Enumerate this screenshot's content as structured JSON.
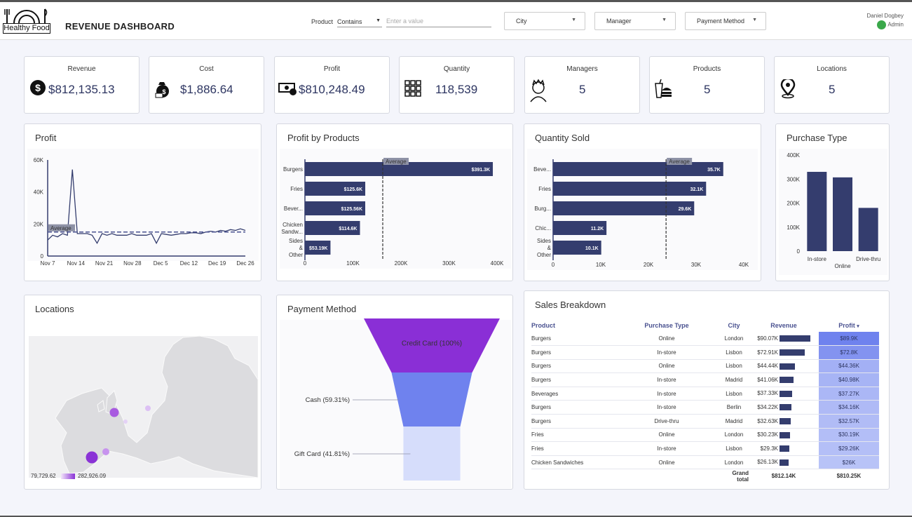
{
  "header": {
    "logo_text": "Healthy Food",
    "title": "REVENUE DASHBOARD",
    "product_filter": {
      "label": "Product",
      "operator": "Contains",
      "placeholder": "Enter a value"
    },
    "dropdowns": [
      "City",
      "Manager",
      "Payment Method"
    ],
    "user": {
      "name": "Daniel Dogbey",
      "role": "Admin"
    }
  },
  "kpis": [
    {
      "label": "Revenue",
      "value": "$812,135.13",
      "icon": "dollar-coin-icon"
    },
    {
      "label": "Cost",
      "value": "$1,886.64",
      "icon": "money-bag-icon"
    },
    {
      "label": "Profit",
      "value": "$810,248.49",
      "icon": "cash-icon"
    },
    {
      "label": "Quantity",
      "value": "118,539",
      "icon": "grid-icon"
    },
    {
      "label": "Managers",
      "value": "5",
      "icon": "manager-icon"
    },
    {
      "label": "Products",
      "value": "5",
      "icon": "food-icon"
    },
    {
      "label": "Locations",
      "value": "5",
      "icon": "location-pin-icon"
    }
  ],
  "profit_chart": {
    "title": "Profit",
    "chart_data": {
      "type": "line",
      "x_ticks": [
        "Nov 7",
        "Nov 14",
        "Nov 21",
        "Nov 28",
        "Dec 5",
        "Dec 12",
        "Dec 19",
        "Dec 26"
      ],
      "y_ticks": [
        "60K",
        "40K",
        "20K",
        "0"
      ],
      "ylim": [
        0,
        60000
      ],
      "average_label": "Average",
      "average": 15000,
      "series": [
        {
          "values": [
            10000,
            13000,
            12000,
            14000,
            13000,
            54000,
            14000,
            14000,
            14000,
            13000,
            8000,
            14000,
            13000,
            14000,
            13000,
            13000,
            13000,
            14000,
            13000,
            13000,
            13000,
            14000,
            8000,
            14000,
            13500,
            13000,
            13500,
            14000,
            14000,
            14500,
            14500,
            14000,
            15000,
            15500,
            15000,
            16000,
            15500,
            16500,
            16000,
            17000,
            16000
          ]
        }
      ]
    }
  },
  "profit_by_products": {
    "title": "Profit by Products",
    "chart_data": {
      "type": "bar",
      "orientation": "horizontal",
      "categories": [
        "Burgers",
        "Fries",
        "Bever...",
        "Chicken Sandw...",
        "Sides & Other"
      ],
      "values": [
        391300,
        125600,
        125560,
        114600,
        53190
      ],
      "value_labels": [
        "$391.3K",
        "$125.6K",
        "$125.56K",
        "$114.6K",
        "$53.19K"
      ],
      "x_ticks": [
        "0",
        "100K",
        "200K",
        "300K",
        "400K"
      ],
      "xlim": [
        0,
        400000
      ],
      "average_label": "Average",
      "average": 162050
    }
  },
  "quantity_sold": {
    "title": "Quantity Sold",
    "chart_data": {
      "type": "bar",
      "orientation": "horizontal",
      "categories": [
        "Beve...",
        "Fries",
        "Burg...",
        "Chic...",
        "Sides & Other"
      ],
      "values": [
        35700,
        32100,
        29600,
        11200,
        10100
      ],
      "value_labels": [
        "35.7K",
        "32.1K",
        "29.6K",
        "11.2K",
        "10.1K"
      ],
      "x_ticks": [
        "0",
        "10K",
        "20K",
        "30K",
        "40K"
      ],
      "xlim": [
        0,
        40000
      ],
      "average_label": "Average",
      "average": 23700
    }
  },
  "purchase_type": {
    "title": "Purchase Type",
    "chart_data": {
      "type": "bar",
      "categories": [
        "In-store",
        "Online",
        "Drive-thru"
      ],
      "values": [
        330000,
        307000,
        180000
      ],
      "y_ticks": [
        "400K",
        "300K",
        "200K",
        "100K",
        "0"
      ],
      "ylim": [
        0,
        400000
      ]
    }
  },
  "locations": {
    "title": "Locations",
    "legend_min": "79,729.62",
    "legend_max": "282,926.09"
  },
  "payment_method": {
    "title": "Payment Method",
    "chart_data": {
      "type": "funnel",
      "categories": [
        "Credit Card",
        "Cash",
        "Gift Card"
      ],
      "values": [
        100,
        59.31,
        41.81
      ],
      "labels": [
        "Credit Card (100%)",
        "Cash (59.31%)",
        "Gift Card (41.81%)"
      ]
    }
  },
  "sales_breakdown": {
    "title": "Sales Breakdown",
    "columns": [
      "Product",
      "Purchase Type",
      "City",
      "Revenue",
      "Profit"
    ],
    "sort_indicator": "▾",
    "rows": [
      {
        "product": "Burgers",
        "type": "Online",
        "city": "London",
        "revenue": "$90.07K",
        "rev": 90.07,
        "profit": "$89.9K",
        "pf": 89.9
      },
      {
        "product": "Burgers",
        "type": "In-store",
        "city": "Lisbon",
        "revenue": "$72.91K",
        "rev": 72.91,
        "profit": "$72.8K",
        "pf": 72.8
      },
      {
        "product": "Burgers",
        "type": "Online",
        "city": "Lisbon",
        "revenue": "$44.44K",
        "rev": 44.44,
        "profit": "$44.36K",
        "pf": 44.36
      },
      {
        "product": "Burgers",
        "type": "In-store",
        "city": "Madrid",
        "revenue": "$41.06K",
        "rev": 41.06,
        "profit": "$40.98K",
        "pf": 40.98
      },
      {
        "product": "Beverages",
        "type": "In-store",
        "city": "Lisbon",
        "revenue": "$37.33K",
        "rev": 37.33,
        "profit": "$37.27K",
        "pf": 37.27
      },
      {
        "product": "Burgers",
        "type": "In-store",
        "city": "Berlin",
        "revenue": "$34.22K",
        "rev": 34.22,
        "profit": "$34.16K",
        "pf": 34.16
      },
      {
        "product": "Burgers",
        "type": "Drive-thru",
        "city": "Madrid",
        "revenue": "$32.63K",
        "rev": 32.63,
        "profit": "$32.57K",
        "pf": 32.57
      },
      {
        "product": "Fries",
        "type": "Online",
        "city": "London",
        "revenue": "$30.23K",
        "rev": 30.23,
        "profit": "$30.19K",
        "pf": 30.19
      },
      {
        "product": "Fries",
        "type": "In-store",
        "city": "Lisbon",
        "revenue": "$29.3K",
        "rev": 29.3,
        "profit": "$29.26K",
        "pf": 29.26
      },
      {
        "product": "Chicken Sandwiches",
        "type": "Online",
        "city": "London",
        "revenue": "$26.13K",
        "rev": 26.13,
        "profit": "$26K",
        "pf": 26
      }
    ],
    "grand_total": {
      "label": "Grand total",
      "revenue": "$812.14K",
      "profit": "$810.25K"
    }
  }
}
